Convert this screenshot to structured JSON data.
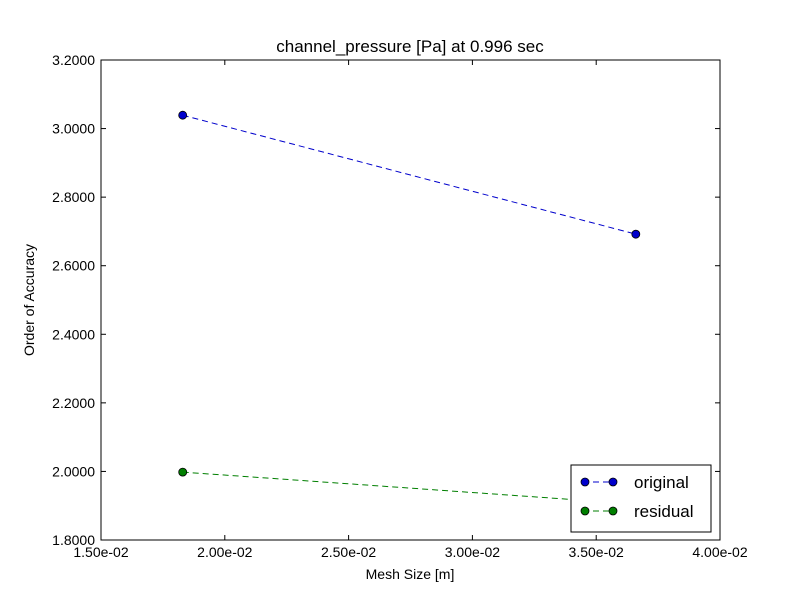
{
  "chart_data": {
    "type": "line",
    "title": "channel_pressure [Pa] at 0.996 sec",
    "xlabel": "Mesh Size [m]",
    "ylabel": "Order of Accuracy",
    "xlim": [
      0.015,
      0.04
    ],
    "ylim": [
      1.8,
      3.2
    ],
    "x_ticks": [
      0.015,
      0.02,
      0.025,
      0.03,
      0.035,
      0.04
    ],
    "x_tick_labels": [
      "1.50e-02",
      "2.00e-02",
      "2.50e-02",
      "3.00e-02",
      "3.50e-02",
      "4.00e-02"
    ],
    "y_ticks": [
      1.8,
      2.0,
      2.2,
      2.4,
      2.6,
      2.8,
      3.0,
      3.2
    ],
    "y_tick_labels": [
      "1.8000",
      "2.0000",
      "2.2000",
      "2.4000",
      "2.6000",
      "2.8000",
      "3.0000",
      "3.2000"
    ],
    "grid": false,
    "legend_position": "bottom-right",
    "series": [
      {
        "name": "original",
        "color": "#0000cc",
        "x": [
          0.0183,
          0.0366
        ],
        "y": [
          3.039,
          2.692
        ]
      },
      {
        "name": "residual",
        "color": "#007f00",
        "x": [
          0.0183,
          0.0366
        ],
        "y": [
          1.998,
          1.905
        ]
      }
    ]
  }
}
